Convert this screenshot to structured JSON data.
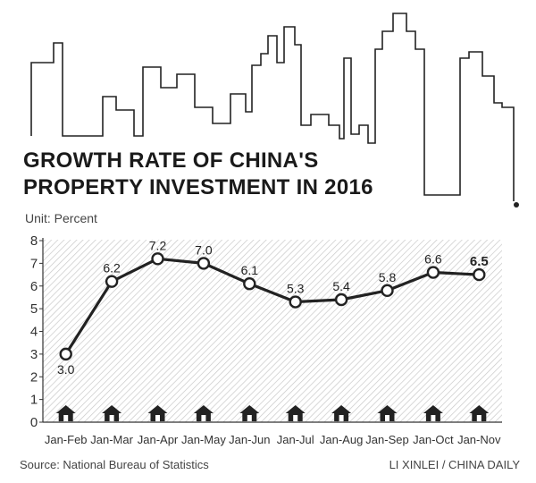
{
  "chart_data": {
    "type": "line",
    "title_line1": "GROWTH RATE OF CHINA'S",
    "title_line2": "PROPERTY INVESTMENT IN 2016",
    "unit_label": "Unit: Percent",
    "categories": [
      "Jan-Feb",
      "Jan-Mar",
      "Jan-Apr",
      "Jan-May",
      "Jan-Jun",
      "Jan-Jul",
      "Jan-Aug",
      "Jan-Sep",
      "Jan-Oct",
      "Jan-Nov"
    ],
    "values": [
      3.0,
      6.2,
      7.2,
      7.0,
      6.1,
      5.3,
      5.4,
      5.8,
      6.6,
      6.5
    ],
    "data_labels": [
      "3.0",
      "6.2",
      "7.2",
      "7.0",
      "6.1",
      "5.3",
      "5.4",
      "5.8",
      "6.6",
      "6.5"
    ],
    "ylim": [
      0,
      8
    ],
    "yticks": [
      0,
      1,
      2,
      3,
      4,
      5,
      6,
      7,
      8
    ],
    "grid": false,
    "hatched_background": true,
    "colors": {
      "line": "#222222",
      "hatch": "#c8c8c8",
      "axis": "#333333"
    }
  },
  "footer": {
    "source": "Source: National Bureau of Statistics",
    "credit": "LI XINLEI / CHINA DAILY"
  }
}
